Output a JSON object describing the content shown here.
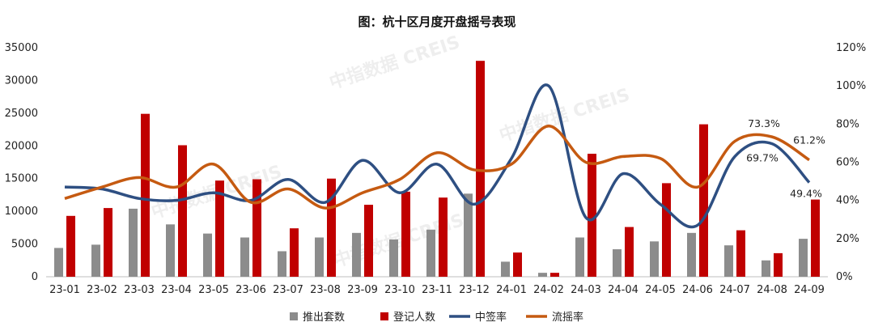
{
  "chart_data": {
    "type": "bar",
    "title": "图：杭十区月度开盘摇号表现",
    "categories": [
      "23-01",
      "23-02",
      "23-03",
      "23-04",
      "23-05",
      "23-06",
      "23-07",
      "23-08",
      "23-09",
      "23-10",
      "23-11",
      "23-12",
      "24-01",
      "24-02",
      "24-03",
      "24-04",
      "24-05",
      "24-06",
      "24-07",
      "24-08",
      "24-09"
    ],
    "ylim": [
      0,
      35000
    ],
    "yticks": [
      0,
      5000,
      10000,
      15000,
      20000,
      25000,
      30000,
      35000
    ],
    "y2lim": [
      0,
      120
    ],
    "y2ticks": [
      "0%",
      "20%",
      "40%",
      "60%",
      "80%",
      "100%",
      "120%"
    ],
    "series": [
      {
        "name": "推出套数",
        "type": "bar",
        "axis": "left",
        "color": "#8c8c8c",
        "values": [
          4400,
          4900,
          10400,
          8000,
          6600,
          6000,
          3900,
          6000,
          6700,
          5700,
          7200,
          12700,
          2300,
          600,
          6000,
          4200,
          5400,
          6700,
          4800,
          2500,
          5800
        ]
      },
      {
        "name": "登记人数",
        "type": "bar",
        "axis": "left",
        "color": "#c00000",
        "values": [
          9300,
          10500,
          24900,
          20100,
          14700,
          14900,
          7400,
          15000,
          11000,
          13000,
          12100,
          33000,
          3700,
          600,
          18800,
          7600,
          14300,
          23300,
          7100,
          3600,
          11800
        ]
      },
      {
        "name": "中签率",
        "type": "line",
        "axis": "right",
        "color": "#2e4f82",
        "values": [
          47,
          46,
          41,
          40,
          44,
          40,
          51,
          39,
          61,
          44,
          59,
          38,
          62,
          100,
          31,
          54,
          38,
          27,
          63,
          69.7,
          49.4
        ]
      },
      {
        "name": "流摇率",
        "type": "line",
        "axis": "right",
        "color": "#c55a11",
        "values": [
          41,
          47,
          52,
          47,
          59,
          39,
          46,
          36,
          44,
          51,
          65,
          56,
          59,
          79,
          60,
          63,
          62,
          47,
          71,
          73.3,
          61.2
        ]
      }
    ],
    "annotations": [
      {
        "series": "流摇率",
        "category": "24-08",
        "text": "73.3%"
      },
      {
        "series": "中签率",
        "category": "24-08",
        "text": "69.7%"
      },
      {
        "series": "流摇率",
        "category": "24-09",
        "text": "61.2%"
      },
      {
        "series": "中签率",
        "category": "24-09",
        "text": "49.4%"
      }
    ],
    "legend_position": "bottom",
    "grid": false,
    "watermark": "中指数据 CREIS"
  }
}
